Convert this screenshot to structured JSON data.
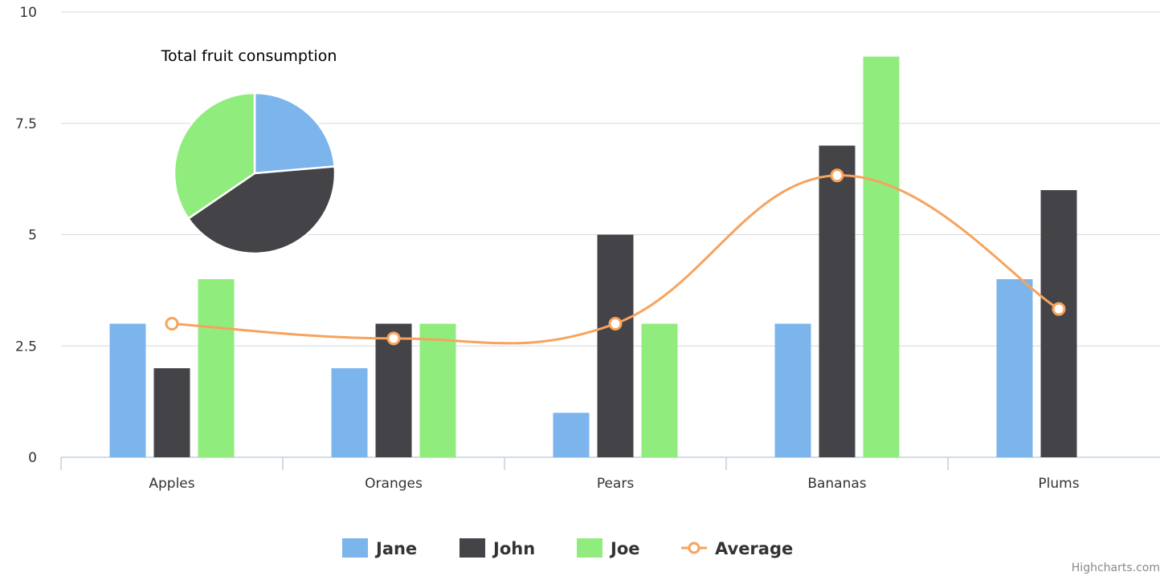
{
  "chart_data": [
    {
      "type": "bar",
      "categories": [
        "Apples",
        "Oranges",
        "Pears",
        "Bananas",
        "Plums"
      ],
      "series": [
        {
          "name": "Jane",
          "type": "bar",
          "color": "#7cb5ec",
          "values": [
            3,
            2,
            1,
            3,
            4
          ]
        },
        {
          "name": "John",
          "type": "bar",
          "color": "#434348",
          "values": [
            2,
            3,
            5,
            7,
            6
          ]
        },
        {
          "name": "Joe",
          "type": "bar",
          "color": "#90ed7d",
          "values": [
            4,
            3,
            3,
            9,
            0
          ]
        },
        {
          "name": "Average",
          "type": "line",
          "color": "#f7a35c",
          "values": [
            3,
            2.67,
            3,
            6.33,
            3.33
          ]
        }
      ],
      "ylim": [
        0,
        10
      ],
      "yticks": [
        "0",
        "2.5",
        "5",
        "7.5",
        "10"
      ],
      "ytick_values": [
        0,
        2.5,
        5,
        7.5,
        10
      ],
      "grid": true,
      "legend_position": "bottom-center"
    },
    {
      "type": "pie",
      "title": "Total fruit consumption",
      "slices": [
        {
          "name": "Jane",
          "value": 13,
          "color": "#7cb5ec"
        },
        {
          "name": "John",
          "value": 23,
          "color": "#434348"
        },
        {
          "name": "Joe",
          "value": 19,
          "color": "#90ed7d"
        }
      ]
    }
  ],
  "credits": "Highcharts.com",
  "gridline_color": "#d8d8d8",
  "axis_line_color": "#c0d0e0"
}
